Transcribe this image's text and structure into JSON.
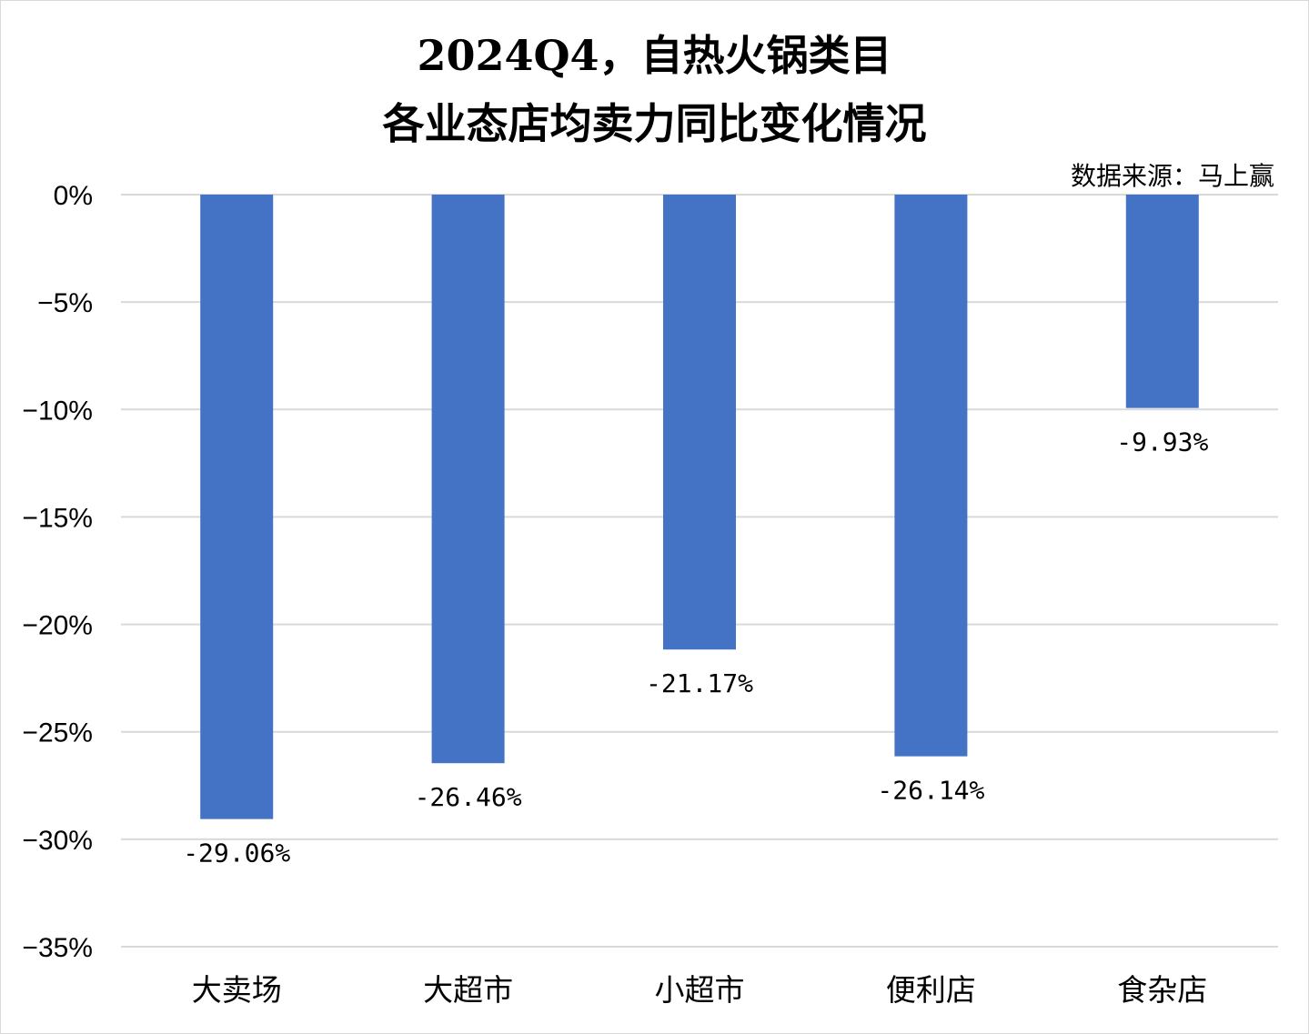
{
  "chart_data": {
    "type": "bar",
    "title_lines": [
      "2024Q4，自热火锅类目",
      "各业态店均卖力同比变化情况"
    ],
    "source": "数据来源：马上赢",
    "categories": [
      "大卖场",
      "大超市",
      "小超市",
      "便利店",
      "食杂店"
    ],
    "values": [
      -29.06,
      -26.46,
      -21.17,
      -26.14,
      -9.93
    ],
    "data_labels": [
      "-29.06%",
      "-26.46%",
      "-21.17%",
      "-26.14%",
      "-9.93%"
    ],
    "y_ticks": [
      0,
      -5,
      -10,
      -15,
      -20,
      -25,
      -30,
      -35
    ],
    "y_tick_labels": [
      "0%",
      "−5%",
      "−10%",
      "−15%",
      "−20%",
      "−25%",
      "−30%",
      "−35%"
    ],
    "ylim": [
      -35,
      0
    ],
    "xlabel": "",
    "ylabel": "",
    "grid": true,
    "legend": "none",
    "bar_color": "#4472C4",
    "grid_color": "#d9d9d9"
  }
}
